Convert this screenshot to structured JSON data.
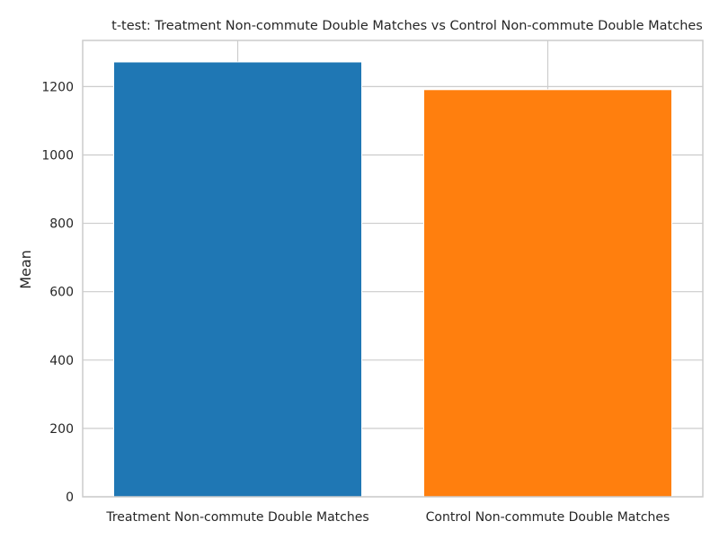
{
  "chart_data": {
    "type": "bar",
    "title": "t-test: Treatment Non-commute Double Matches vs Control Non-commute Double Matches",
    "xlabel": "",
    "ylabel": "Mean",
    "categories": [
      "Treatment Non-commute Double Matches",
      "Control Non-commute Double Matches"
    ],
    "values": [
      1272,
      1191
    ],
    "colors": [
      "#1f77b4",
      "#ff7f0e"
    ],
    "ylim": [
      0,
      1335
    ],
    "yticks": [
      0,
      200,
      400,
      600,
      800,
      1000,
      1200
    ],
    "ytick_labels": [
      "0",
      "200",
      "400",
      "600",
      "800",
      "1000",
      "1200"
    ],
    "grid": true,
    "grid_color": "#cccccc",
    "legend": "none"
  }
}
